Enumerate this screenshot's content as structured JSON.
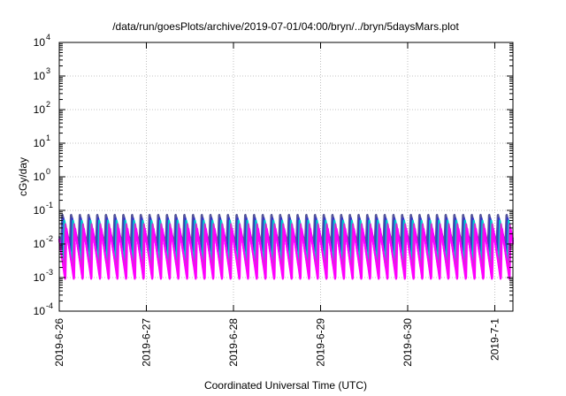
{
  "chart_data": {
    "type": "line",
    "title": "/data/run/goesPlots/archive/2019-07-01/04:00/bryn/../bryn/5daysMars.plot",
    "xlabel": "Coordinated Universal Time (UTC)",
    "ylabel": "cGy/day",
    "yscale": "log",
    "ylim": [
      0.0001,
      10000
    ],
    "xlim": [
      "2019-06-26T00:00",
      "2019-07-01T05:00"
    ],
    "grid": true,
    "x_ticks": [
      {
        "date": "2019-06-26T00:00",
        "label": "2019-6-26"
      },
      {
        "date": "2019-06-27T00:00",
        "label": "2019-6-27"
      },
      {
        "date": "2019-06-28T00:00",
        "label": "2019-6-28"
      },
      {
        "date": "2019-06-29T00:00",
        "label": "2019-6-29"
      },
      {
        "date": "2019-06-30T00:00",
        "label": "2019-6-30"
      },
      {
        "date": "2019-07-01T00:00",
        "label": "2019-7-1"
      }
    ],
    "y_ticks": [
      {
        "value": 0.0001,
        "base": "10",
        "exp": "-4"
      },
      {
        "value": 0.001,
        "base": "10",
        "exp": "-3"
      },
      {
        "value": 0.01,
        "base": "10",
        "exp": "-2"
      },
      {
        "value": 0.1,
        "base": "10",
        "exp": "-1"
      },
      {
        "value": 1,
        "base": "10",
        "exp": "0"
      },
      {
        "value": 10,
        "base": "10",
        "exp": "1"
      },
      {
        "value": 100,
        "base": "10",
        "exp": "2"
      },
      {
        "value": 1000,
        "base": "10",
        "exp": "3"
      },
      {
        "value": 10000,
        "base": "10",
        "exp": "4"
      }
    ],
    "period_hours": 2.4,
    "series": [
      {
        "color": "#ff00ff",
        "peak": 0.03,
        "trough": 0.0008
      },
      {
        "color": "#cc33cc",
        "peak": 0.04,
        "trough": 0.0015
      },
      {
        "color": "#00cccc",
        "peak": 0.05,
        "trough": 0.003
      },
      {
        "color": "#3333cc",
        "peak": 0.06,
        "trough": 0.006
      },
      {
        "color": "#555599",
        "peak": 0.08,
        "trough": 0.01
      }
    ]
  }
}
